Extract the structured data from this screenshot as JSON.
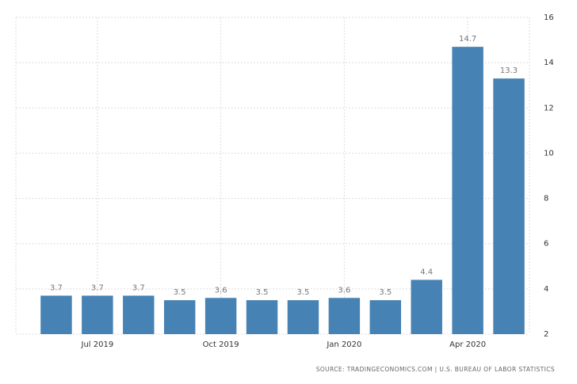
{
  "chart_data": {
    "type": "bar",
    "categories": [
      null,
      "Jul 2019",
      null,
      null,
      "Oct 2019",
      null,
      null,
      "Jan 2020",
      null,
      null,
      "Apr 2020",
      null
    ],
    "values": [
      3.7,
      3.7,
      3.7,
      3.5,
      3.6,
      3.5,
      3.5,
      3.6,
      3.5,
      4.4,
      14.7,
      13.3
    ],
    "color": "#4682b4",
    "ylim": [
      2,
      16
    ],
    "yticks": [
      2,
      4,
      6,
      8,
      10,
      12,
      14,
      16
    ],
    "grid": true,
    "source": "SOURCE: TRADINGECONOMICS.COM | U.S. BUREAU OF LABOR STATISTICS"
  }
}
